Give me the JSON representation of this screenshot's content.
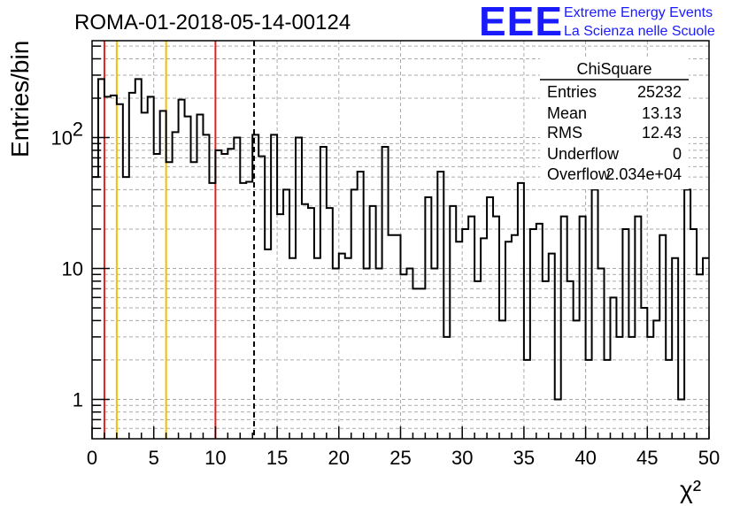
{
  "chart_data": {
    "type": "bar",
    "style": "step-histogram",
    "title": "ROMA-01-2018-05-14-00124",
    "xlabel": "χ²",
    "ylabel": "Entries/bin",
    "xlim": [
      0,
      50
    ],
    "ylim": [
      0.5,
      550
    ],
    "yscale": "log",
    "grid": true,
    "line_color": "#000000",
    "bin_width": 0.5,
    "x_ticks": [
      0,
      5,
      10,
      15,
      20,
      25,
      30,
      35,
      40,
      45,
      50
    ],
    "y_ticks": [
      {
        "value": 1,
        "label": "1"
      },
      {
        "value": 10,
        "label": "10"
      },
      {
        "value": 100,
        "label": "10",
        "sup": "2"
      }
    ],
    "values": [
      50,
      280,
      205,
      210,
      180,
      50,
      220,
      280,
      155,
      205,
      75,
      160,
      65,
      110,
      195,
      145,
      65,
      150,
      105,
      45,
      80,
      75,
      82,
      100,
      45,
      46,
      105,
      72,
      14,
      105,
      26,
      40,
      12,
      100,
      31,
      29,
      12,
      85,
      29,
      10,
      13,
      12,
      40,
      55,
      10,
      30,
      10,
      85,
      18,
      18,
      9,
      10,
      7,
      7,
      35,
      10,
      55,
      3,
      30,
      16,
      20,
      25,
      8,
      17,
      35,
      25,
      4,
      16,
      18,
      45,
      2,
      20,
      22,
      8,
      13,
      1,
      25,
      8,
      4,
      25,
      2,
      40,
      10,
      2,
      6,
      3,
      20,
      3,
      25,
      5,
      3,
      4,
      18,
      2,
      12,
      1,
      40,
      20,
      9,
      12
    ],
    "vertical_lines": [
      {
        "x": 1,
        "color": "#e02020",
        "dash": false
      },
      {
        "x": 2,
        "color": "#f0c000",
        "dash": false
      },
      {
        "x": 6,
        "color": "#f0c000",
        "dash": false
      },
      {
        "x": 10,
        "color": "#e02020",
        "dash": false
      },
      {
        "x": 13.13,
        "color": "#000000",
        "dash": true
      }
    ],
    "stats_box": {
      "title": "ChiSquare",
      "rows": [
        {
          "label": "Entries",
          "value": "25232"
        },
        {
          "label": "Mean",
          "value": "13.13"
        },
        {
          "label": "RMS",
          "value": "12.43"
        },
        {
          "label": "Underflow",
          "value": "0"
        },
        {
          "label": "Overflow",
          "value": "2.034e+04"
        }
      ]
    }
  },
  "logo": {
    "mark": "EEE",
    "line1": "Extreme Energy Events",
    "line2": "La Scienza nelle Scuole"
  }
}
